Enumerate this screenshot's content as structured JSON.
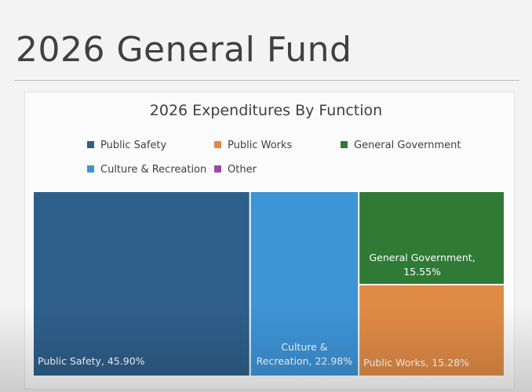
{
  "slide": {
    "title": "2026 General Fund"
  },
  "chart_data": {
    "type": "treemap",
    "title": "2026 Expenditures By Function",
    "legend": [
      {
        "name": "Public Safety",
        "color": "#2e5f8a"
      },
      {
        "name": "Public Works",
        "color": "#e08b45"
      },
      {
        "name": "General Government",
        "color": "#2f7a35"
      },
      {
        "name": "Culture & Recreation",
        "color": "#3d94d6"
      },
      {
        "name": "Other",
        "color": "#9b4aa6"
      }
    ],
    "series": [
      {
        "name": "Public Safety",
        "value": 45.9,
        "label": "Public Safety, 45.90%",
        "color": "#2e5f8a"
      },
      {
        "name": "Culture & Recreation",
        "value": 22.98,
        "label": "Culture &\nRecreation, 22.98%",
        "color": "#3d94d6"
      },
      {
        "name": "General Government",
        "value": 15.55,
        "label": "General Government,\n15.55%",
        "color": "#2f7a35"
      },
      {
        "name": "Public Works",
        "value": 15.28,
        "label": "Public Works, 15.28%",
        "color": "#e08b45"
      }
    ],
    "unit": "%"
  }
}
